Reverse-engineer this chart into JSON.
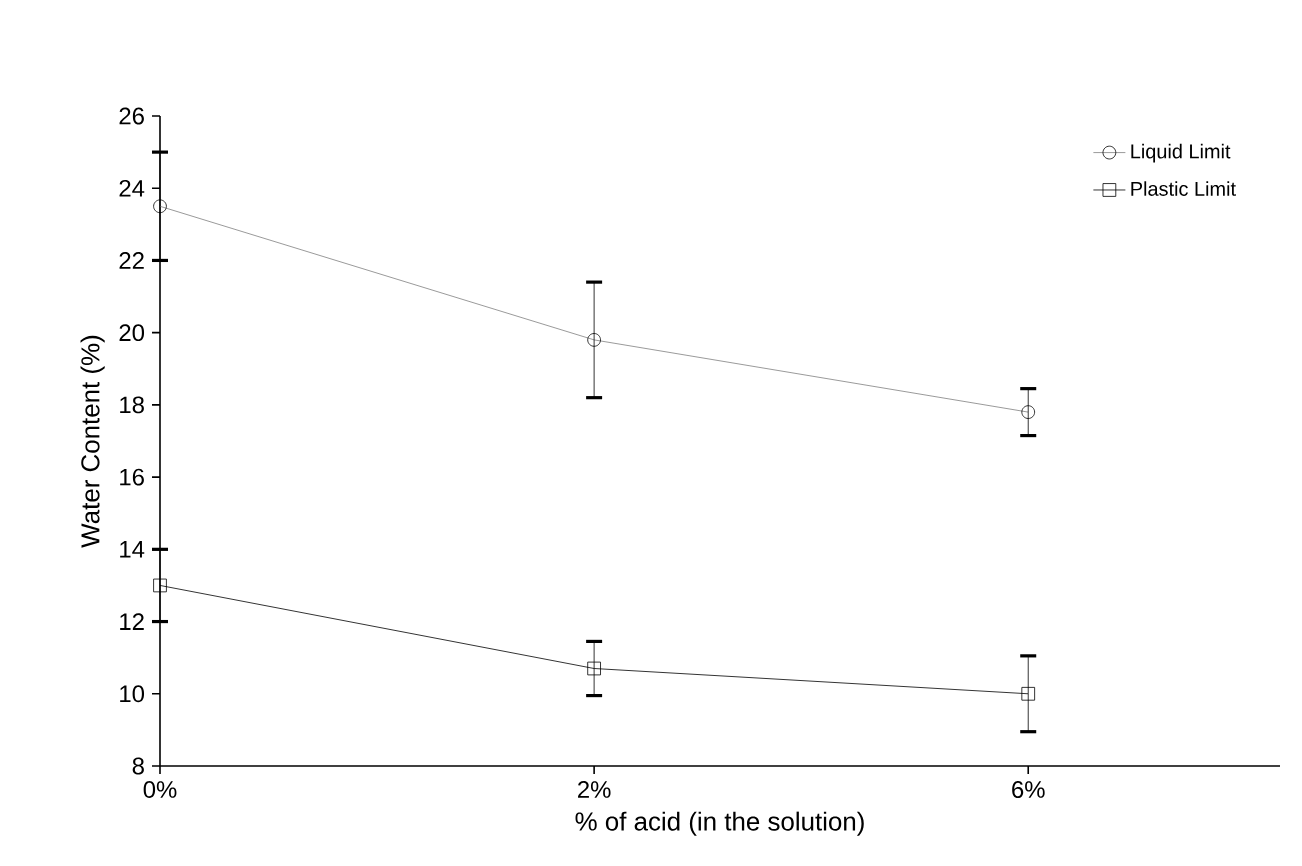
{
  "chart_data": {
    "type": "line",
    "xlabel": "% of acid (in the solution)",
    "ylabel": "Water Content (%)",
    "categories": [
      "0%",
      "2%",
      "6%"
    ],
    "series": [
      {
        "name": "Liquid Limit",
        "color": "#808080",
        "marker": "circle",
        "values": [
          23.5,
          19.8,
          17.8
        ],
        "errors": [
          1.5,
          1.6,
          0.65
        ]
      },
      {
        "name": "Plastic Limit",
        "color": "#000000",
        "marker": "square",
        "values": [
          13.0,
          10.7,
          10.0
        ],
        "errors": [
          1.0,
          0.75,
          1.05
        ]
      }
    ],
    "ylim": [
      8,
      26
    ],
    "yticks": [
      8,
      10,
      12,
      14,
      16,
      18,
      20,
      22,
      24,
      26
    ],
    "grid": false,
    "legend": "top right"
  }
}
